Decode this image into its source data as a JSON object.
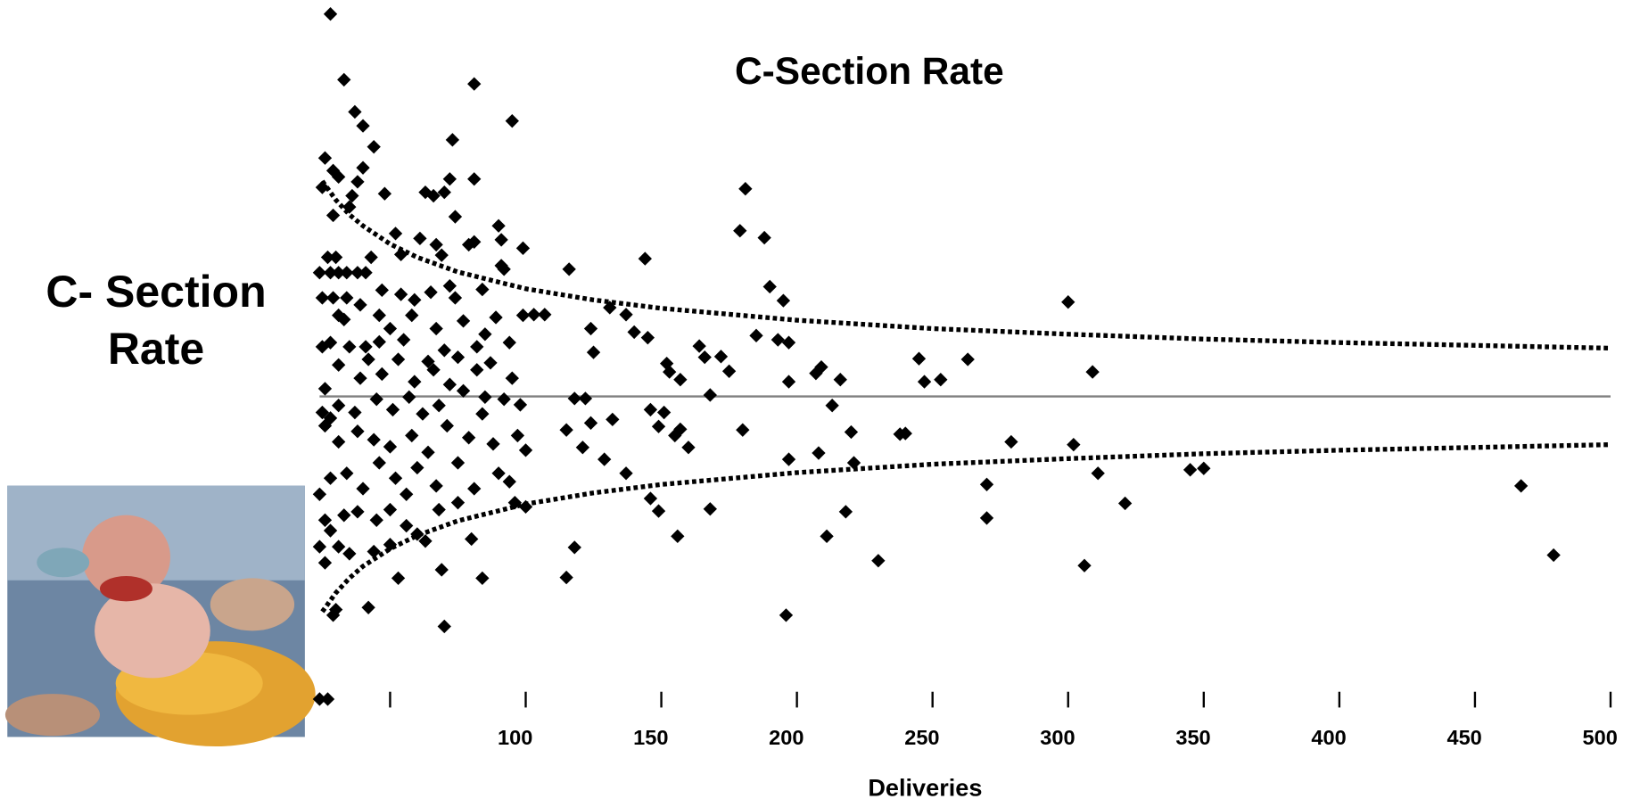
{
  "chart_data": {
    "type": "scatter",
    "title": "C-Section Rate",
    "x_label": "Deliveries",
    "y_label": "C- Section Rate",
    "color": "#000000",
    "xlim": [
      24,
      500
    ],
    "ylim": [
      0,
      100
    ],
    "xticks": [
      {
        "value": 50,
        "label": null
      },
      100,
      150,
      200,
      250,
      300,
      350,
      400,
      450,
      500
    ],
    "x": [
      95,
      81,
      28,
      33,
      37,
      40,
      44,
      73,
      181,
      179,
      188,
      144,
      116,
      190,
      195,
      300,
      131,
      137,
      103,
      107,
      124,
      140,
      145,
      185,
      193,
      197,
      164,
      172,
      245,
      263,
      125,
      152,
      153,
      157,
      166,
      175,
      209,
      207,
      216,
      197,
      247,
      253,
      309,
      118,
      122,
      168,
      213,
      146,
      151,
      132,
      124,
      115,
      149,
      157,
      155,
      180,
      160,
      220,
      238,
      240,
      279,
      302,
      121,
      129,
      197,
      208,
      221,
      137,
      311,
      345,
      350,
      270,
      467,
      146,
      149,
      168,
      218,
      321,
      270,
      211,
      156,
      118,
      115,
      230,
      306,
      479,
      196,
      84,
      70,
      69,
      42,
      53,
      30,
      29,
      27,
      24,
      81,
      72,
      63,
      66,
      48,
      70,
      74,
      90,
      91,
      79,
      99,
      81,
      67,
      52,
      54,
      61,
      69,
      91,
      92,
      26,
      25,
      29,
      31,
      36,
      35,
      29,
      40,
      38,
      27,
      30,
      24,
      28,
      31,
      34,
      38,
      41,
      25,
      29,
      34,
      43,
      47,
      54,
      65,
      72,
      74,
      84,
      58,
      67,
      77,
      85,
      94,
      87,
      82,
      75,
      70,
      64,
      55,
      50,
      46,
      39,
      33,
      28,
      31,
      35,
      42,
      39,
      47,
      53,
      59,
      66,
      72,
      77,
      85,
      92,
      98,
      26,
      31,
      37,
      45,
      51,
      57,
      62,
      68,
      84,
      26,
      31,
      38,
      44,
      50,
      58,
      64,
      71,
      79,
      88,
      97,
      100,
      24,
      28,
      34,
      40,
      46,
      52,
      56,
      60,
      67,
      75,
      81,
      90,
      94,
      100,
      26,
      28,
      33,
      38,
      45,
      50,
      56,
      63,
      68,
      75,
      80,
      96,
      24,
      26,
      31,
      35,
      44,
      50,
      60,
      28,
      25,
      25,
      31,
      41,
      46,
      59,
      82,
      95,
      89,
      99
    ],
    "values": [
      82.7,
      88,
      98,
      88.6,
      84,
      82,
      79,
      80,
      73,
      67,
      66,
      63,
      61.5,
      59,
      57,
      56.8,
      56,
      55,
      55,
      55,
      53,
      52.5,
      51.7,
      52,
      51.4,
      51,
      50.5,
      49,
      48.7,
      48.6,
      49.6,
      48,
      46.8,
      45.7,
      48.9,
      46.9,
      47.5,
      46.6,
      45.7,
      45.4,
      45.4,
      45.7,
      46.8,
      43,
      43,
      43.5,
      42,
      41.4,
      41,
      40,
      39.5,
      38.5,
      39,
      38.6,
      37.7,
      38.5,
      36,
      38.2,
      37.9,
      38,
      36.8,
      36.4,
      36,
      34.3,
      34.3,
      35.2,
      33.8,
      32.3,
      32.3,
      32.8,
      33,
      30.7,
      30.5,
      28.7,
      26.9,
      27.2,
      26.8,
      28,
      25.9,
      23.3,
      23.3,
      21.7,
      17.4,
      19.8,
      19.1,
      20.6,
      12,
      17.3,
      10.4,
      18.5,
      13.1,
      17.3,
      12.8,
      12,
      0,
      0,
      74.4,
      74.4,
      72.5,
      72,
      72.3,
      72.5,
      69,
      67.7,
      65.7,
      65,
      64.5,
      65.4,
      65,
      66.6,
      63.6,
      65.9,
      63.5,
      62,
      61.5,
      77.4,
      73.2,
      75.6,
      74.7,
      72,
      70.4,
      69.2,
      76,
      74,
      63.2,
      63.2,
      61,
      61,
      61,
      61,
      61,
      61,
      57.4,
      57.4,
      57.4,
      63.2,
      58.5,
      57.9,
      58.2,
      59.1,
      57.4,
      58.6,
      54.9,
      53,
      54.1,
      52.2,
      51,
      48.1,
      47.1,
      48.9,
      49.9,
      48.3,
      51.4,
      53,
      54.9,
      56.4,
      54.3,
      51,
      47.8,
      50.4,
      48.6,
      45.9,
      46.5,
      48.6,
      45.4,
      47.1,
      45,
      44.1,
      43.2,
      42.9,
      42.1,
      44.4,
      42,
      41,
      42.9,
      41.4,
      43.2,
      40.8,
      42,
      40.8,
      39.1,
      36.8,
      38.3,
      37.1,
      36.1,
      37.7,
      35.3,
      39.1,
      37.4,
      36.5,
      37.7,
      35.6,
      29.3,
      31.6,
      32.3,
      30.1,
      33.8,
      31.6,
      29.3,
      33.1,
      30.5,
      33.8,
      30.1,
      32.3,
      31.1,
      27.5,
      25.6,
      24.1,
      26.3,
      26.8,
      25.6,
      27.1,
      24.8,
      22.6,
      27.1,
      28.1,
      22.9,
      28.1,
      21.8,
      19.5,
      21.8,
      20.8,
      21.1,
      22.1,
      23.6,
      40.2,
      41,
      50.4,
      54.9,
      50.4,
      51.1,
      57.1,
      50.4,
      45.9,
      54.6,
      54.9
    ],
    "center_line": {
      "value": 43.3,
      "color": "#808080"
    },
    "control_limits": {
      "color": "#000000",
      "x": [
        25,
        30,
        35,
        40,
        50,
        60,
        75,
        100,
        125,
        150,
        200,
        250,
        300,
        350,
        400,
        450,
        500
      ],
      "upper": [
        74.1,
        71.4,
        69.3,
        67.7,
        65.1,
        63.2,
        61.1,
        58.7,
        57.1,
        55.9,
        54.2,
        53.0,
        52.2,
        51.5,
        51.0,
        50.6,
        50.2
      ],
      "lower": [
        12.5,
        15.2,
        17.3,
        19.0,
        21.5,
        23.4,
        25.5,
        27.9,
        29.5,
        30.7,
        32.4,
        33.6,
        34.4,
        35.1,
        35.6,
        36.0,
        36.4
      ]
    }
  }
}
